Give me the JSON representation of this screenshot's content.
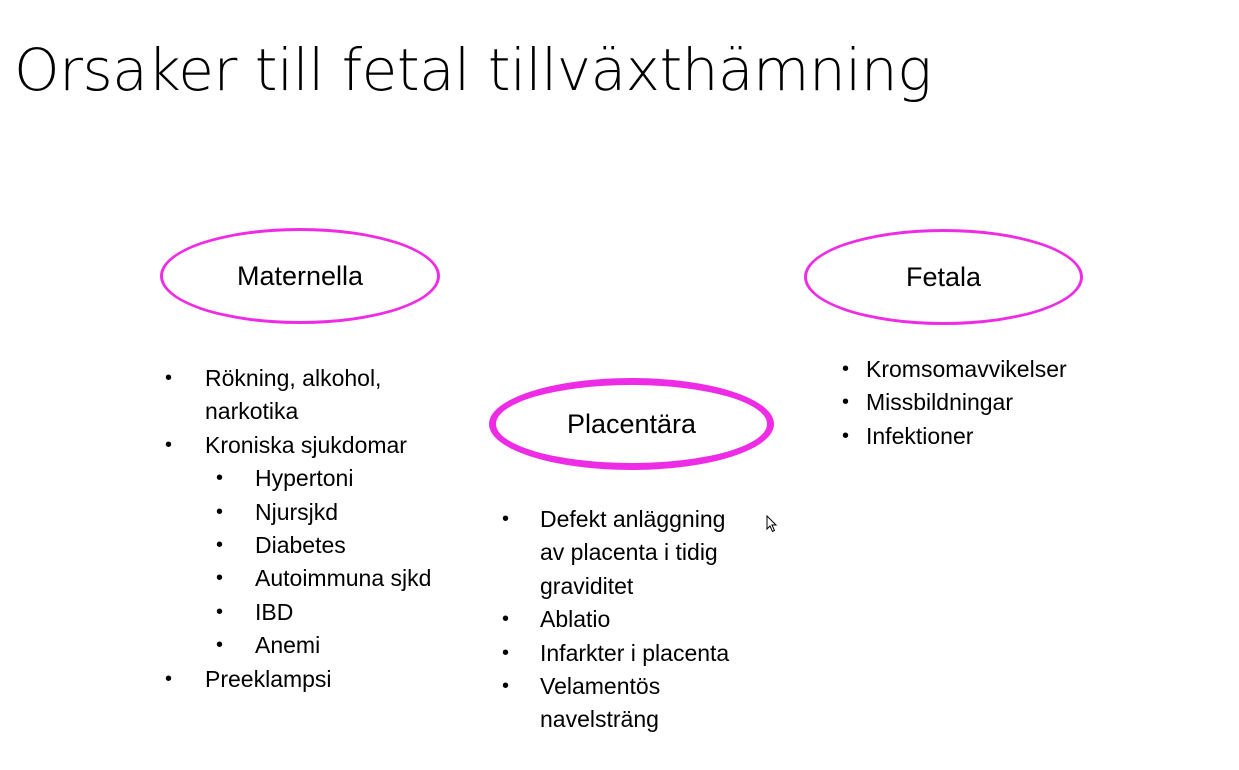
{
  "slide": {
    "title": "Orsaker till fetal tillväxthämning",
    "accent_color": "#ee2ce6"
  },
  "maternella": {
    "label": "Maternella",
    "items": [
      "Rökning, alkohol,",
      "narkotika",
      "Kroniska sjukdomar",
      "Hypertoni",
      "Njursjkd",
      "Diabetes",
      "Autoimmuna sjkd",
      "IBD",
      "Anemi",
      "Preeklampsi"
    ]
  },
  "placentara": {
    "label": "Placentära",
    "items": [
      "Defekt anläggning",
      "av placenta i tidig",
      "graviditet",
      "Ablatio",
      "Infarkter i placenta",
      "Velamentös",
      "navelsträng"
    ]
  },
  "fetala": {
    "label": "Fetala",
    "items": [
      "Kromsomavvikelser",
      "Missbildningar",
      "Infektioner"
    ]
  },
  "bullet_glyph": "•",
  "icons": {
    "cursor": "mouse-pointer-icon"
  }
}
